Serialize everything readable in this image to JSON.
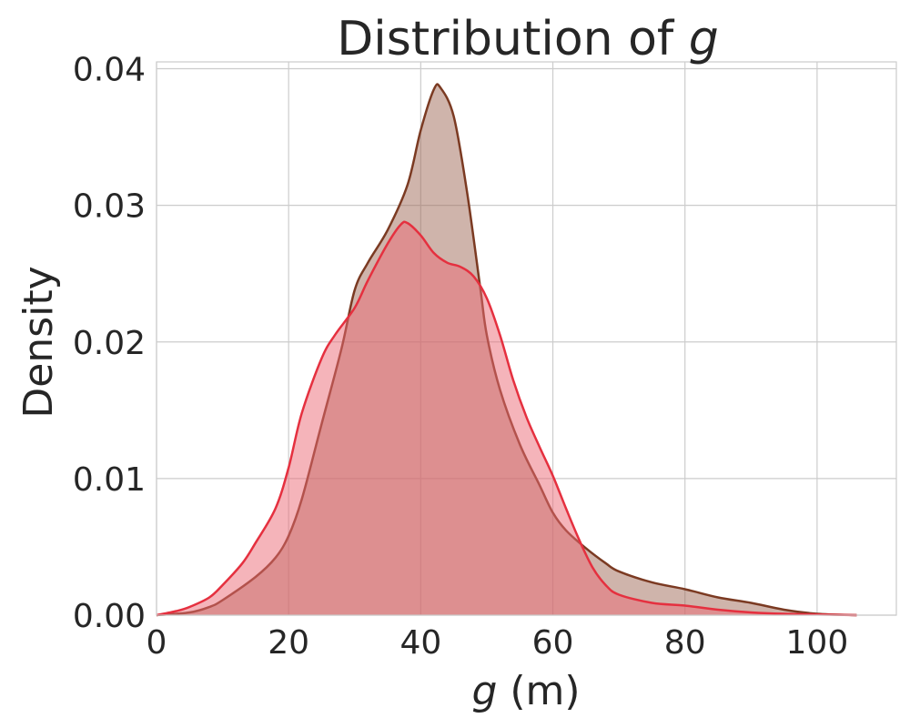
{
  "chart_data": {
    "type": "area",
    "title": "Distribution of g",
    "title_prefix": "Distribution of ",
    "title_symbol": "g",
    "xlabel": "g (m)",
    "xlabel_symbol": "g",
    "xlabel_unit": " (m)",
    "ylabel": "Density",
    "xlim": [
      0,
      112
    ],
    "ylim": [
      0,
      0.0405
    ],
    "x_ticks": [
      0,
      20,
      40,
      60,
      80,
      100
    ],
    "x_tick_labels": [
      "0",
      "20",
      "40",
      "60",
      "80",
      "100"
    ],
    "y_ticks": [
      0,
      0.01,
      0.02,
      0.03,
      0.04
    ],
    "y_tick_labels": [
      "0.00",
      "0.01",
      "0.02",
      "0.03",
      "0.04"
    ],
    "grid": true,
    "series": [
      {
        "color": "#7b3a22",
        "fill": "#a06a58",
        "points": [
          [
            0,
            0
          ],
          [
            5,
            0.0002
          ],
          [
            8,
            0.0006
          ],
          [
            10,
            0.0011
          ],
          [
            15,
            0.0028
          ],
          [
            18,
            0.0042
          ],
          [
            20,
            0.0058
          ],
          [
            22,
            0.0085
          ],
          [
            25,
            0.014
          ],
          [
            28,
            0.0195
          ],
          [
            30,
            0.0238
          ],
          [
            32,
            0.0258
          ],
          [
            35,
            0.0282
          ],
          [
            38,
            0.0315
          ],
          [
            40,
            0.0355
          ],
          [
            42,
            0.0385
          ],
          [
            43,
            0.0386
          ],
          [
            45,
            0.0365
          ],
          [
            47,
            0.031
          ],
          [
            49,
            0.024
          ],
          [
            50,
            0.0205
          ],
          [
            52,
            0.0165
          ],
          [
            55,
            0.0125
          ],
          [
            58,
            0.0095
          ],
          [
            60,
            0.0075
          ],
          [
            62,
            0.0062
          ],
          [
            65,
            0.0049
          ],
          [
            68,
            0.0038
          ],
          [
            70,
            0.0032
          ],
          [
            75,
            0.0024
          ],
          [
            80,
            0.0019
          ],
          [
            85,
            0.0013
          ],
          [
            90,
            0.0009
          ],
          [
            95,
            0.0004
          ],
          [
            100,
            0.0001
          ],
          [
            106,
            0
          ]
        ]
      },
      {
        "color": "#e5303f",
        "fill": "#ec6a76",
        "points": [
          [
            0,
            0
          ],
          [
            3,
            0.0003
          ],
          [
            5,
            0.0006
          ],
          [
            8,
            0.0013
          ],
          [
            10,
            0.0022
          ],
          [
            13,
            0.0038
          ],
          [
            15,
            0.0053
          ],
          [
            18,
            0.0078
          ],
          [
            20,
            0.0108
          ],
          [
            22,
            0.0148
          ],
          [
            25,
            0.0188
          ],
          [
            27,
            0.0205
          ],
          [
            30,
            0.0225
          ],
          [
            32,
            0.0245
          ],
          [
            35,
            0.0272
          ],
          [
            37,
            0.0286
          ],
          [
            38,
            0.0287
          ],
          [
            40,
            0.0278
          ],
          [
            42,
            0.0265
          ],
          [
            44,
            0.0258
          ],
          [
            46,
            0.0255
          ],
          [
            48,
            0.0248
          ],
          [
            50,
            0.0232
          ],
          [
            52,
            0.0205
          ],
          [
            54,
            0.0172
          ],
          [
            56,
            0.0145
          ],
          [
            58,
            0.0123
          ],
          [
            60,
            0.0102
          ],
          [
            62,
            0.0078
          ],
          [
            64,
            0.0055
          ],
          [
            66,
            0.0035
          ],
          [
            68,
            0.0022
          ],
          [
            70,
            0.0015
          ],
          [
            75,
            0.0009
          ],
          [
            80,
            0.0007
          ],
          [
            85,
            0.0004
          ],
          [
            90,
            0.0002
          ],
          [
            95,
            0.0001
          ],
          [
            106,
            0
          ]
        ]
      }
    ]
  }
}
